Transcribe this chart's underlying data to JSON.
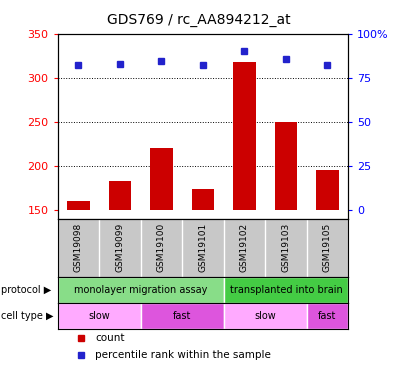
{
  "title": "GDS769 / rc_AA894212_at",
  "samples": [
    "GSM19098",
    "GSM19099",
    "GSM19100",
    "GSM19101",
    "GSM19102",
    "GSM19103",
    "GSM19105"
  ],
  "count_values": [
    160,
    183,
    220,
    174,
    318,
    250,
    195
  ],
  "percentile_values": [
    314,
    316,
    319,
    314,
    330,
    321,
    315
  ],
  "ylim_left": [
    140,
    350
  ],
  "yticks_left": [
    150,
    200,
    250,
    300,
    350
  ],
  "right_ticks_positions": [
    150,
    200,
    250,
    300,
    350
  ],
  "right_tick_labels": [
    "0",
    "25",
    "50",
    "75",
    "100%"
  ],
  "bar_color": "#cc0000",
  "dot_color": "#2222cc",
  "sample_bg": "#c8c8c8",
  "protocol_groups": [
    {
      "label": "monolayer migration assay",
      "start": 0,
      "end": 4,
      "color": "#88dd88"
    },
    {
      "label": "transplanted into brain",
      "start": 4,
      "end": 7,
      "color": "#44cc44"
    }
  ],
  "celltype_groups": [
    {
      "label": "slow",
      "start": 0,
      "end": 2,
      "color": "#ffaaff"
    },
    {
      "label": "fast",
      "start": 2,
      "end": 4,
      "color": "#dd55dd"
    },
    {
      "label": "slow",
      "start": 4,
      "end": 6,
      "color": "#ffaaff"
    },
    {
      "label": "fast",
      "start": 6,
      "end": 7,
      "color": "#dd55dd"
    }
  ],
  "protocol_label": "protocol",
  "celltype_label": "cell type",
  "legend_count": "count",
  "legend_percentile": "percentile rank within the sample",
  "dotted_lines": [
    200,
    250,
    300
  ],
  "bar_bottom": 150,
  "bar_width": 0.55
}
